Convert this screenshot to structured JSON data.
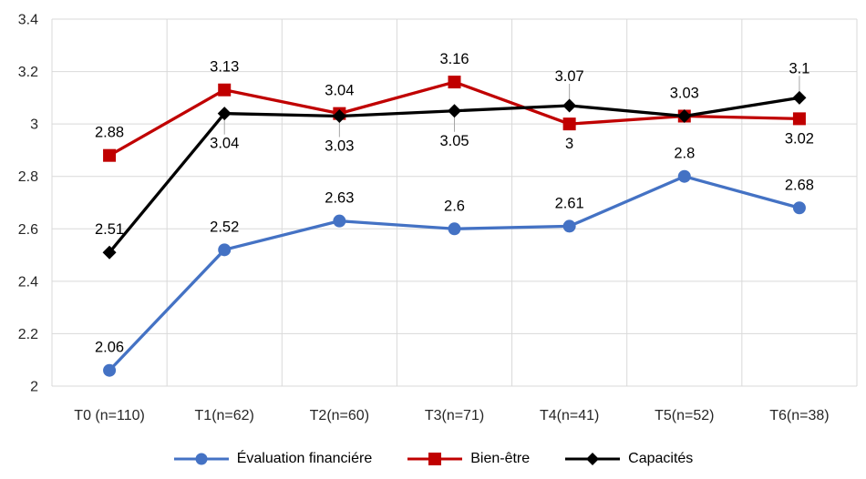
{
  "chart_data": {
    "type": "line",
    "title": "",
    "xlabel": "",
    "ylabel": "",
    "categories": [
      "T0 (n=110)",
      "T1(n=62)",
      "T2(n=60)",
      "T3(n=71)",
      "T4(n=41)",
      "T5(n=52)",
      "T6(n=38)"
    ],
    "series": [
      {
        "name": "Évaluation financiére",
        "color": "#4472C4",
        "marker": "circle",
        "values": [
          2.06,
          2.52,
          2.63,
          2.6,
          2.61,
          2.8,
          2.68
        ],
        "labels": [
          "2.06",
          "2.52",
          "2.63",
          "2.6",
          "2.61",
          "2.8",
          "2.68"
        ],
        "label_pos": [
          "above",
          "above",
          "above",
          "above",
          "above",
          "above",
          "above"
        ],
        "leader": [
          false,
          false,
          false,
          false,
          false,
          false,
          false
        ]
      },
      {
        "name": "Bien-être",
        "color": "#C00000",
        "marker": "square",
        "values": [
          2.88,
          3.13,
          3.04,
          3.16,
          3,
          3.03,
          3.02
        ],
        "labels": [
          "2.88",
          "3.13",
          "3.04",
          "3.16",
          "3",
          "3.03",
          "3.02"
        ],
        "label_pos": [
          "above",
          "above",
          "above",
          "above",
          "below",
          "above",
          "below"
        ],
        "leader": [
          false,
          false,
          false,
          false,
          false,
          false,
          false
        ]
      },
      {
        "name": "Capacités",
        "color": "#000000",
        "marker": "diamond",
        "values": [
          2.51,
          3.04,
          3.03,
          3.05,
          3.07,
          3.03,
          3.1
        ],
        "labels": [
          "2.51",
          "3.04",
          "3.03",
          "3.05",
          "3.07",
          "",
          "3.1"
        ],
        "label_pos": [
          "above",
          "below",
          "below",
          "below",
          "above",
          "none",
          "above"
        ],
        "leader": [
          false,
          true,
          true,
          true,
          true,
          false,
          true
        ]
      }
    ],
    "ylim": [
      2,
      3.4
    ],
    "yticks": [
      "3.4",
      "3.2",
      "3",
      "2.8",
      "2.6",
      "2.4",
      "2.2",
      "2"
    ],
    "grid": true,
    "legend_position": "bottom",
    "gridline_color": "#D9D9D9",
    "leader_color": "#A6A6A6",
    "tick_color": "#262626",
    "data_label_color": "#000000"
  }
}
